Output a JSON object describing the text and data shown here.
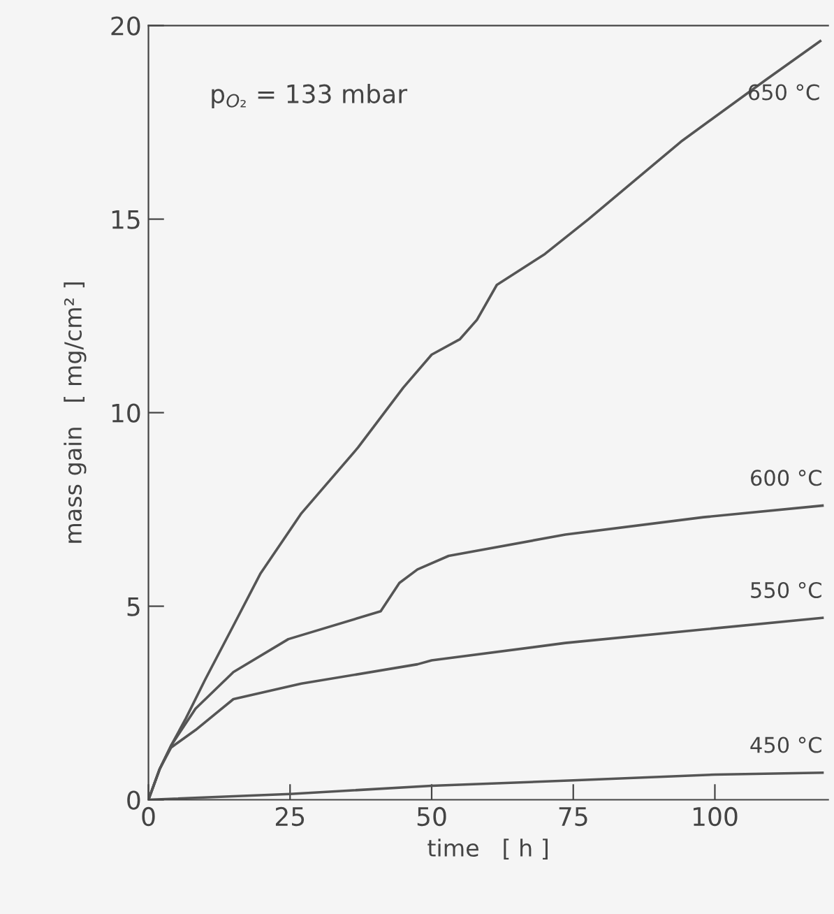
{
  "chart_data": {
    "type": "line",
    "xlabel": "time   [ h ]",
    "ylabel": "mass gain   [ mg/cm² ]",
    "annotations": [
      "p$_{O₂}$ = 133 mbar"
    ],
    "xlim": [
      0,
      120
    ],
    "ylim": [
      0,
      20
    ],
    "xticks": [
      0,
      25,
      50,
      75,
      100
    ],
    "yticks": [
      0,
      5,
      10,
      15,
      20
    ],
    "grid": false,
    "legend": false,
    "marker": "none",
    "line_style": "solid",
    "series": [
      {
        "name": "650 °C",
        "color": "#555555",
        "x": [
          0,
          2,
          4,
          6.6,
          10,
          15,
          19.8,
          27,
          37,
          45,
          50,
          55,
          58,
          61.5,
          70,
          77.7,
          94,
          109,
          118.6
        ],
        "values": [
          0,
          0.8,
          1.4,
          2.1,
          3.1,
          4.5,
          5.85,
          7.4,
          9.1,
          10.65,
          11.5,
          11.9,
          12.4,
          13.3,
          14.1,
          15,
          17,
          18.6,
          19.6
        ]
      },
      {
        "name": "600 °C",
        "color": "#555555",
        "x": [
          0,
          2,
          4,
          8.3,
          15,
          24.7,
          41,
          44.3,
          47.5,
          53,
          73.6,
          98,
          119
        ],
        "values": [
          0,
          0.8,
          1.4,
          2.35,
          3.3,
          4.15,
          4.87,
          5.6,
          5.95,
          6.3,
          6.85,
          7.3,
          7.6
        ]
      },
      {
        "name": "550 °C",
        "color": "#555555",
        "x": [
          0,
          2,
          4,
          8.3,
          15,
          27,
          47.5,
          50,
          73.6,
          98,
          119
        ],
        "values": [
          0,
          0.8,
          1.35,
          1.8,
          2.6,
          3.0,
          3.5,
          3.6,
          4.05,
          4.4,
          4.7
        ]
      },
      {
        "name": "450 °C",
        "color": "#555555",
        "x": [
          0,
          25,
          50,
          75,
          100,
          119
        ],
        "values": [
          0,
          0.15,
          0.36,
          0.5,
          0.65,
          0.7
        ]
      }
    ]
  }
}
